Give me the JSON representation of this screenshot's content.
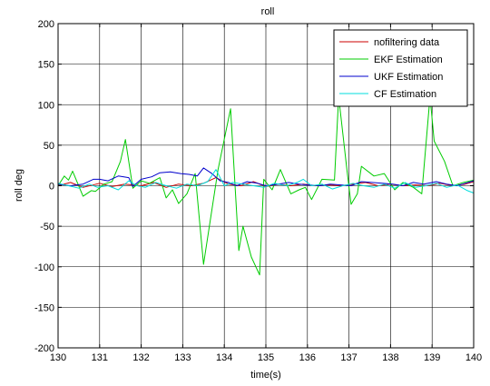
{
  "chart_data": {
    "type": "line",
    "title": "roll",
    "xlabel": "time(s)",
    "ylabel": "roll deg",
    "xlim": [
      130,
      140
    ],
    "ylim": [
      -200,
      200
    ],
    "xticks": [
      130,
      131,
      132,
      133,
      134,
      135,
      136,
      137,
      138,
      139,
      140
    ],
    "yticks": [
      200,
      150,
      100,
      50,
      0,
      -50,
      -100,
      -150,
      -200
    ],
    "grid": true,
    "legend_position": "top-right",
    "series": [
      {
        "name": "nofiltering data",
        "color": "#cc0000",
        "points": [
          [
            130,
            0
          ],
          [
            130.3,
            4
          ],
          [
            130.6,
            -2
          ],
          [
            131,
            3
          ],
          [
            131.3,
            -1
          ],
          [
            131.6,
            2
          ],
          [
            132,
            0
          ],
          [
            132.3,
            4
          ],
          [
            132.6,
            -2
          ],
          [
            132.9,
            2
          ],
          [
            133.2,
            0
          ],
          [
            133.5,
            3
          ],
          [
            133.8,
            10
          ],
          [
            134.1,
            2
          ],
          [
            134.4,
            0
          ],
          [
            134.7,
            5
          ],
          [
            135,
            -1
          ],
          [
            135.3,
            2
          ],
          [
            135.6,
            0
          ],
          [
            135.9,
            2
          ],
          [
            136.2,
            0
          ],
          [
            136.5,
            1
          ],
          [
            136.8,
            0
          ],
          [
            137.1,
            2
          ],
          [
            137.4,
            4
          ],
          [
            137.7,
            0
          ],
          [
            138,
            2
          ],
          [
            138.3,
            0
          ],
          [
            138.6,
            1
          ],
          [
            138.9,
            0
          ],
          [
            139.2,
            3
          ],
          [
            139.5,
            0
          ],
          [
            139.8,
            2
          ],
          [
            140,
            5
          ]
        ]
      },
      {
        "name": "EKF Estimation",
        "color": "#00cc00",
        "points": [
          [
            130,
            0
          ],
          [
            130.15,
            12
          ],
          [
            130.25,
            7
          ],
          [
            130.35,
            18
          ],
          [
            130.6,
            -13
          ],
          [
            130.8,
            -6
          ],
          [
            130.9,
            -7
          ],
          [
            131.1,
            2
          ],
          [
            131.3,
            5
          ],
          [
            131.5,
            30
          ],
          [
            131.62,
            57
          ],
          [
            131.8,
            -3
          ],
          [
            132,
            6
          ],
          [
            132.2,
            3
          ],
          [
            132.45,
            10
          ],
          [
            132.6,
            -15
          ],
          [
            132.75,
            -5
          ],
          [
            132.9,
            -22
          ],
          [
            133.1,
            -10
          ],
          [
            133.3,
            15
          ],
          [
            133.5,
            -97
          ],
          [
            133.85,
            20
          ],
          [
            134.15,
            95
          ],
          [
            134.35,
            -80
          ],
          [
            134.45,
            -50
          ],
          [
            134.65,
            -88
          ],
          [
            134.85,
            -110
          ],
          [
            134.95,
            8
          ],
          [
            135.15,
            -5
          ],
          [
            135.35,
            20
          ],
          [
            135.6,
            -10
          ],
          [
            135.8,
            -5
          ],
          [
            135.95,
            -2
          ],
          [
            136.1,
            -17
          ],
          [
            136.35,
            8
          ],
          [
            136.65,
            7
          ],
          [
            136.75,
            110
          ],
          [
            136.95,
            20
          ],
          [
            137.05,
            -23
          ],
          [
            137.2,
            -10
          ],
          [
            137.3,
            24
          ],
          [
            137.6,
            12
          ],
          [
            137.85,
            15
          ],
          [
            138.1,
            -5
          ],
          [
            138.3,
            4
          ],
          [
            138.55,
            -2
          ],
          [
            138.75,
            -10
          ],
          [
            138.95,
            110
          ],
          [
            139.05,
            55
          ],
          [
            139.3,
            30
          ],
          [
            139.5,
            0
          ],
          [
            139.75,
            4
          ],
          [
            140,
            7
          ]
        ]
      },
      {
        "name": "UKF Estimation",
        "color": "#0000cc",
        "points": [
          [
            130,
            2
          ],
          [
            130.3,
            0
          ],
          [
            130.6,
            2
          ],
          [
            130.85,
            8
          ],
          [
            131,
            8
          ],
          [
            131.2,
            6
          ],
          [
            131.45,
            12
          ],
          [
            131.7,
            10
          ],
          [
            131.8,
            -1
          ],
          [
            132,
            8
          ],
          [
            132.25,
            11
          ],
          [
            132.45,
            16
          ],
          [
            132.7,
            17
          ],
          [
            132.95,
            15
          ],
          [
            133.15,
            14
          ],
          [
            133.35,
            12
          ],
          [
            133.5,
            22
          ],
          [
            133.7,
            15
          ],
          [
            133.9,
            6
          ],
          [
            134.1,
            4
          ],
          [
            134.3,
            0
          ],
          [
            134.55,
            5
          ],
          [
            134.8,
            3
          ],
          [
            135,
            0
          ],
          [
            135.3,
            2
          ],
          [
            135.55,
            4
          ],
          [
            135.8,
            2
          ],
          [
            136,
            1
          ],
          [
            136.3,
            0
          ],
          [
            136.55,
            2
          ],
          [
            136.8,
            1
          ],
          [
            137.05,
            0
          ],
          [
            137.3,
            5
          ],
          [
            137.55,
            4
          ],
          [
            137.8,
            3
          ],
          [
            138.05,
            2
          ],
          [
            138.3,
            0
          ],
          [
            138.55,
            4
          ],
          [
            138.8,
            2
          ],
          [
            139.1,
            5
          ],
          [
            139.35,
            2
          ],
          [
            139.6,
            0
          ],
          [
            139.8,
            3
          ],
          [
            140,
            6
          ]
        ]
      },
      {
        "name": "CF Estimation",
        "color": "#00dddd",
        "points": [
          [
            130,
            3
          ],
          [
            130.25,
            0
          ],
          [
            130.5,
            -3
          ],
          [
            130.75,
            2
          ],
          [
            130.95,
            -2
          ],
          [
            131.2,
            0
          ],
          [
            131.45,
            -5
          ],
          [
            131.7,
            6
          ],
          [
            131.9,
            0
          ],
          [
            132.1,
            -2
          ],
          [
            132.35,
            4
          ],
          [
            132.6,
            0
          ],
          [
            132.85,
            -3
          ],
          [
            133.1,
            2
          ],
          [
            133.35,
            0
          ],
          [
            133.6,
            5
          ],
          [
            133.8,
            20
          ],
          [
            134,
            0
          ],
          [
            134.2,
            4
          ],
          [
            134.45,
            2
          ],
          [
            134.7,
            0
          ],
          [
            134.95,
            -2
          ],
          [
            135.2,
            3
          ],
          [
            135.5,
            0
          ],
          [
            135.75,
            4
          ],
          [
            135.9,
            8
          ],
          [
            136.1,
            0
          ],
          [
            136.35,
            2
          ],
          [
            136.6,
            -4
          ],
          [
            136.85,
            0
          ],
          [
            137.1,
            3
          ],
          [
            137.35,
            0
          ],
          [
            137.6,
            -2
          ],
          [
            137.85,
            2
          ],
          [
            138.1,
            -3
          ],
          [
            138.35,
            4
          ],
          [
            138.6,
            -2
          ],
          [
            138.85,
            0
          ],
          [
            139.1,
            3
          ],
          [
            139.35,
            -2
          ],
          [
            139.6,
            1
          ],
          [
            139.85,
            -6
          ],
          [
            140,
            -9
          ]
        ]
      }
    ]
  }
}
